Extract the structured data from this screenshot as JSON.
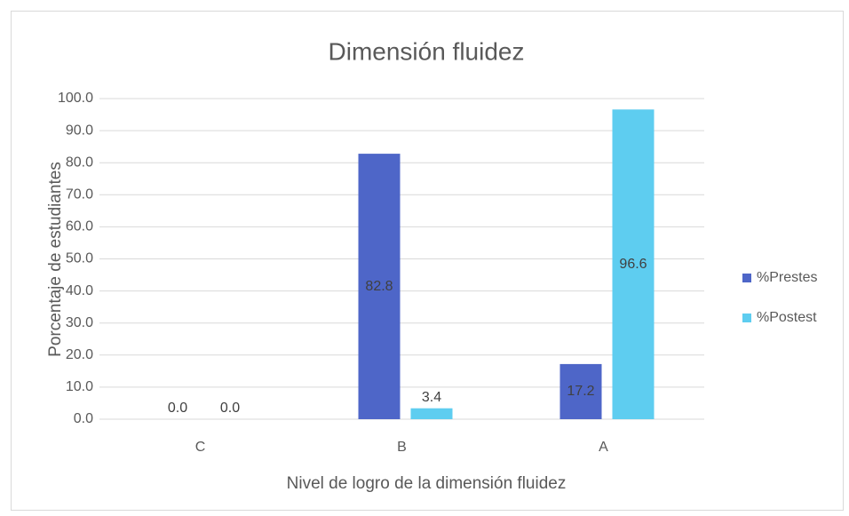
{
  "chart_data": {
    "type": "bar",
    "title": "Dimensión fluidez",
    "x_label": "Nivel de logro de la dimensión fluidez",
    "y_label": "Porcentaje de estudiantes",
    "categories": [
      "C",
      "B",
      "A"
    ],
    "series": [
      {
        "name": "%Prestes",
        "color": "#4e66c8",
        "values": [
          0,
          82.8,
          17.2
        ],
        "value_labels": [
          "0.0",
          "82.8",
          "17.2"
        ]
      },
      {
        "name": "%Postest",
        "color": "#5ecdf0",
        "values": [
          0,
          3.4,
          96.6
        ],
        "value_labels": [
          "0.0",
          "3.4",
          "96.6"
        ]
      }
    ],
    "ylim": [
      0,
      100
    ],
    "yticks": [
      {
        "value": 0,
        "label": "0.0"
      },
      {
        "value": 10,
        "label": "10.0"
      },
      {
        "value": 20,
        "label": "20.0"
      },
      {
        "value": 30,
        "label": "30.0"
      },
      {
        "value": 40,
        "label": "40.0"
      },
      {
        "value": 50,
        "label": "50.0"
      },
      {
        "value": 60,
        "label": "60.0"
      },
      {
        "value": 70,
        "label": "70.0"
      },
      {
        "value": 80,
        "label": "80.0"
      },
      {
        "value": 90,
        "label": "90.0"
      },
      {
        "value": 100,
        "label": "100.0"
      }
    ],
    "grid": true,
    "legend": "right"
  }
}
